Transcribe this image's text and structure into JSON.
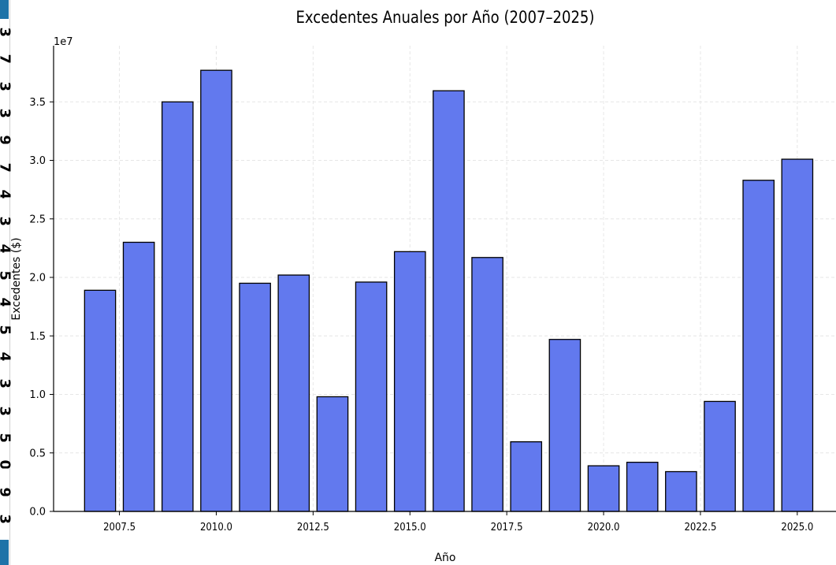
{
  "chart_data": {
    "type": "bar",
    "title": "Excedentes Anuales por Año (2007–2025)",
    "xlabel": "Año",
    "ylabel": "Excedentes ($)",
    "y_offset_label": "1e7",
    "categories": [
      2007,
      2008,
      2009,
      2010,
      2011,
      2012,
      2013,
      2014,
      2015,
      2016,
      2017,
      2018,
      2019,
      2020,
      2021,
      2022,
      2023,
      2024,
      2025
    ],
    "values": [
      18900000,
      23000000,
      35000000,
      37700000,
      19500000,
      20200000,
      9800000,
      19600000,
      22200000,
      35950000,
      21700000,
      5950000,
      14700000,
      3900000,
      4200000,
      3400000,
      9400000,
      28300000,
      30100000
    ],
    "xlim": [
      2005.8,
      2026.0
    ],
    "ylim": [
      0,
      39800000
    ],
    "x_ticks": [
      2007.5,
      2010.0,
      2012.5,
      2015.0,
      2017.5,
      2020.0,
      2022.5,
      2025.0
    ],
    "x_tick_labels": [
      "2007.5",
      "2010.0",
      "2012.5",
      "2015.0",
      "2017.5",
      "2020.0",
      "2022.5",
      "2025.0"
    ],
    "y_ticks": [
      0,
      5000000,
      10000000,
      15000000,
      20000000,
      25000000,
      30000000,
      35000000
    ],
    "y_tick_labels": [
      "0.0",
      "0.5",
      "1.0",
      "1.5",
      "2.0",
      "2.5",
      "3.0",
      "3.5"
    ],
    "grid": true,
    "bar_color": "#6279ee",
    "bar_edge_color": "#000000"
  },
  "left_strip": {
    "glyphs": [
      "3",
      "7",
      "3",
      "3",
      "9",
      "7",
      "4",
      "3",
      "4",
      "5",
      "4",
      "5",
      "4",
      "3",
      "3",
      "5",
      "0",
      "9",
      "3"
    ]
  }
}
